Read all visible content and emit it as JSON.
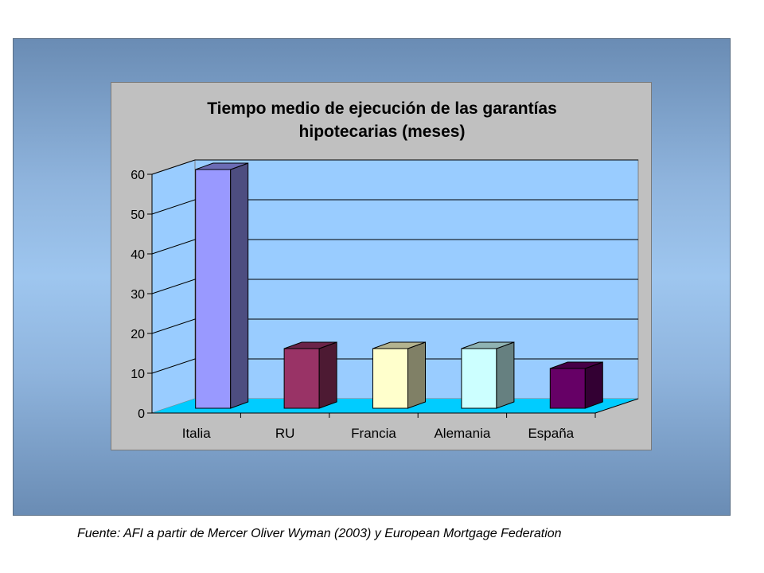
{
  "chart_data": {
    "type": "bar",
    "title": [
      "Tiempo medio de ejecución de las garantías",
      "hipotecarias (meses)"
    ],
    "categories": [
      "Italia",
      "RU",
      "Francia",
      "Alemania",
      "España"
    ],
    "values": [
      60,
      15,
      15,
      15,
      10
    ],
    "y_ticks": [
      "0",
      "10",
      "20",
      "30",
      "40",
      "50",
      "60"
    ],
    "ylim": [
      0,
      60
    ],
    "grid": true,
    "legend": "none",
    "style": "3d-column",
    "colors": {
      "front": [
        "#9999ff",
        "#993366",
        "#ffffcc",
        "#ccffff",
        "#660066"
      ],
      "side": [
        "#4d4d80",
        "#4d1a33",
        "#808066",
        "#668080",
        "#330033"
      ],
      "top": [
        "#6c6cb4",
        "#6b2448",
        "#b3b38f",
        "#8fb3b3",
        "#470047"
      ],
      "wall": "#99ccff",
      "floor": "#00ccff",
      "gridline": "#000000"
    }
  },
  "caption": "Fuente: AFI a partir de Mercer Oliver Wyman (2003) y European Mortgage Federation"
}
